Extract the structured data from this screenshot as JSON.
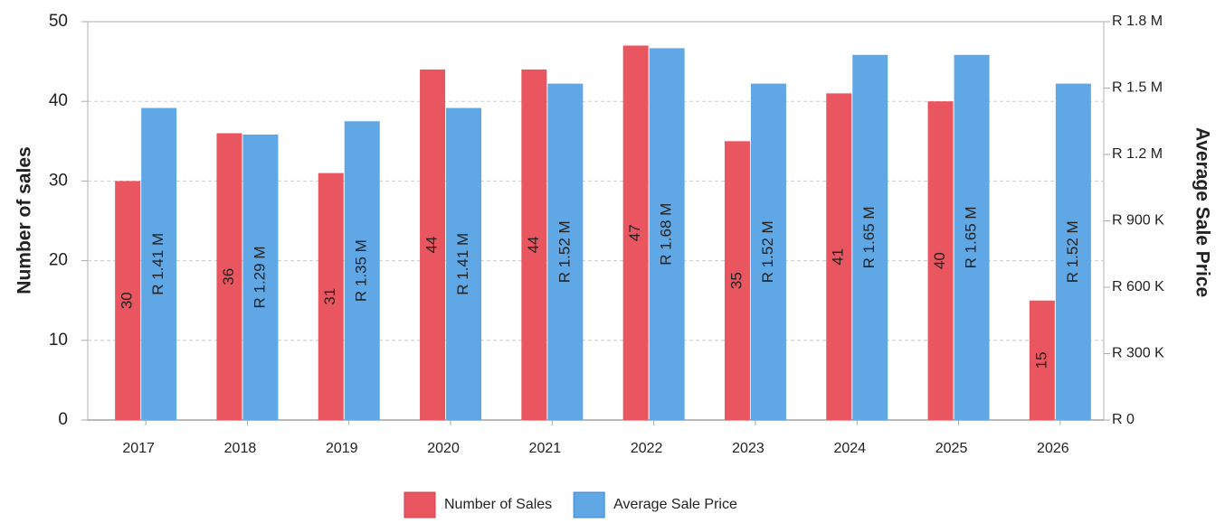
{
  "chart_data": {
    "type": "bar",
    "categories": [
      "2017",
      "2018",
      "2019",
      "2020",
      "2021",
      "2022",
      "2023",
      "2024",
      "2025",
      "2026"
    ],
    "series": [
      {
        "name": "Number of Sales",
        "color": "#ea5660",
        "values": [
          30,
          36,
          31,
          44,
          44,
          47,
          35,
          41,
          40,
          15
        ]
      },
      {
        "name": "Average Sale Price",
        "color": "#5fa7e5",
        "axis": "y2",
        "values": [
          1410000,
          1290000,
          1350000,
          1410000,
          1520000,
          1680000,
          1520000,
          1650000,
          1650000,
          1520000
        ],
        "value_labels": [
          "R 1.41 M",
          "R 1.29 M",
          "R 1.35 M",
          "R 1.41 M",
          "R 1.52 M",
          "R 1.68 M",
          "R 1.52 M",
          "R 1.65 M",
          "R 1.65 M",
          "R 1.52 M"
        ]
      }
    ],
    "y_label": "Number of sales",
    "y2_label": "Average Sale Price",
    "ylim": [
      0,
      50
    ],
    "yticks": [
      0,
      10,
      20,
      30,
      40,
      50
    ],
    "y2lim": [
      0,
      1800000
    ],
    "y2ticks": [
      {
        "value": 0,
        "label": "R 0"
      },
      {
        "value": 300000,
        "label": "R 300 K"
      },
      {
        "value": 600000,
        "label": "R 600 K"
      },
      {
        "value": 900000,
        "label": "R 900 K"
      },
      {
        "value": 1200000,
        "label": "R 1.2 M"
      },
      {
        "value": 1500000,
        "label": "R 1.5 M"
      },
      {
        "value": 1800000,
        "label": "R 1.8 M"
      }
    ],
    "grid": true,
    "legend": "bottom"
  }
}
